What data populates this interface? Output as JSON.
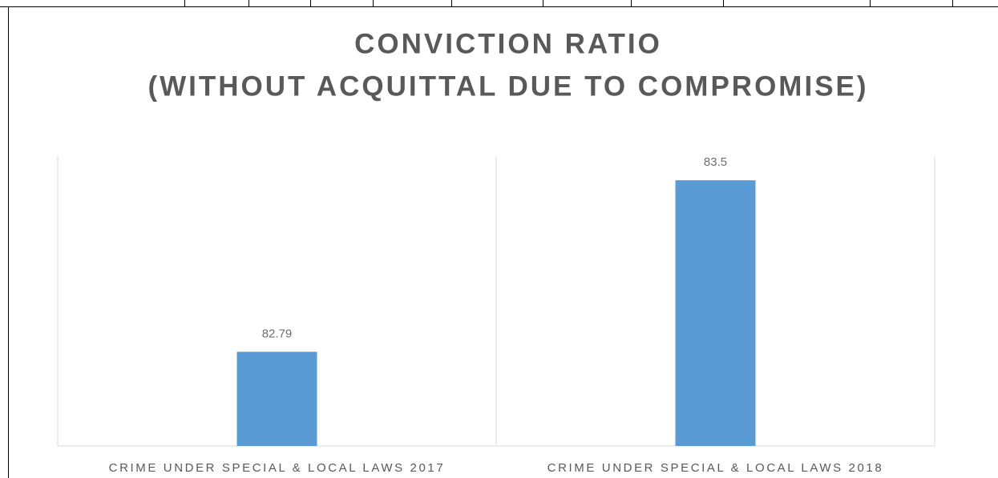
{
  "chart_data": {
    "type": "bar",
    "title": "CONVICTION RATIO",
    "subtitle": "(WITHOUT ACQUITTAL DUE TO COMPROMISE)",
    "categories": [
      "CRIME UNDER SPECIAL & LOCAL LAWS 2017",
      "CRIME UNDER SPECIAL & LOCAL LAWS 2018"
    ],
    "values": [
      82.79,
      83.5
    ],
    "color": "#5b9bd5",
    "ylim": [
      82.4,
      83.6
    ]
  }
}
